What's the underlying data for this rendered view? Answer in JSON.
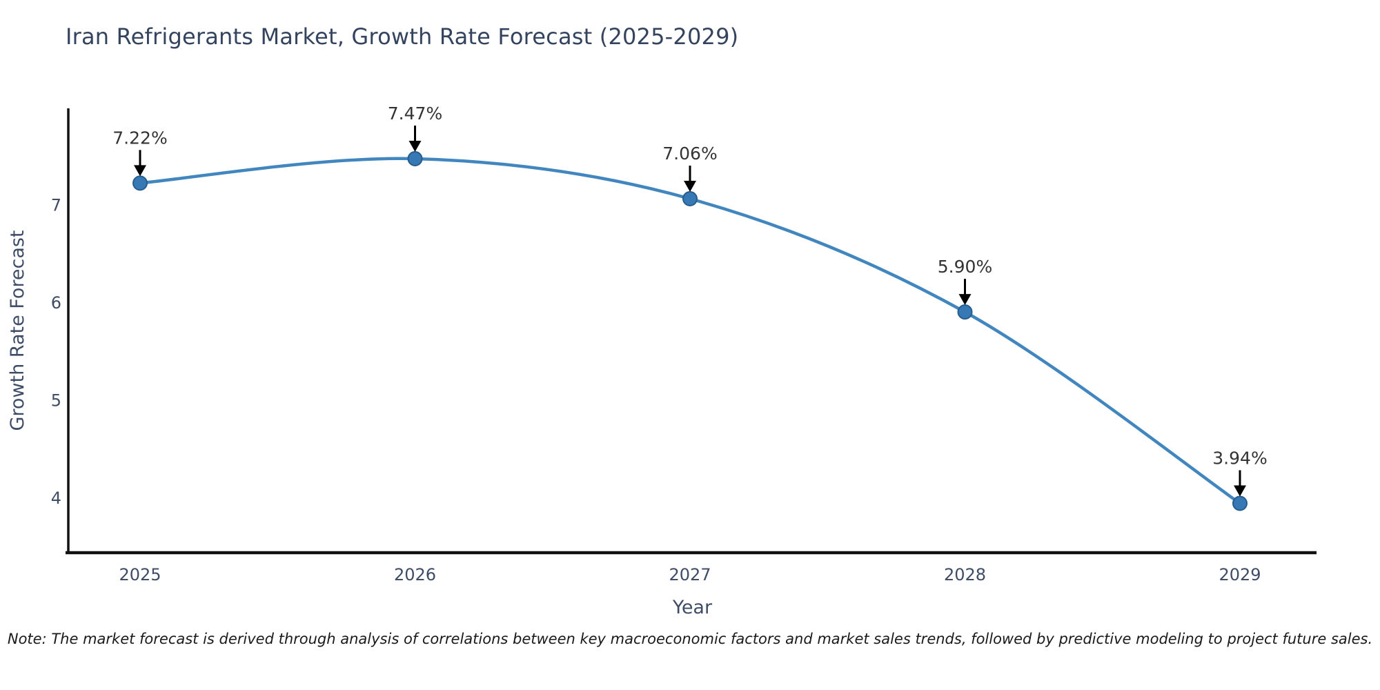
{
  "note": "Note: The market forecast is derived through analysis of correlations between key macroeconomic factors and market sales trends, followed by predictive modeling to project future sales.",
  "chart_data": {
    "type": "line",
    "title": "Iran Refrigerants Market, Growth Rate Forecast (2025-2029)",
    "xlabel": "Year",
    "ylabel": "Growth Rate Forecast",
    "x": [
      2025,
      2026,
      2027,
      2028,
      2029
    ],
    "values": [
      7.22,
      7.47,
      7.06,
      5.9,
      3.94
    ],
    "point_labels": [
      "7.22%",
      "7.47%",
      "7.06%",
      "5.90%",
      "3.94%"
    ],
    "xticks": [
      "2025",
      "2026",
      "2027",
      "2028",
      "2029"
    ],
    "yticks": [
      4,
      5,
      6,
      7
    ],
    "ylim": [
      3.4,
      8.0
    ],
    "grid": false,
    "legend": null,
    "colors": {
      "line": "#4186bf",
      "marker": "#3779b5",
      "marker_edge": "#275d8c",
      "arrow": "#000000",
      "title_text": "#34435e",
      "axis_text": "#3f4c66",
      "annotation_text": "#333333",
      "spine": "#111111",
      "background": "#ffffff"
    }
  }
}
